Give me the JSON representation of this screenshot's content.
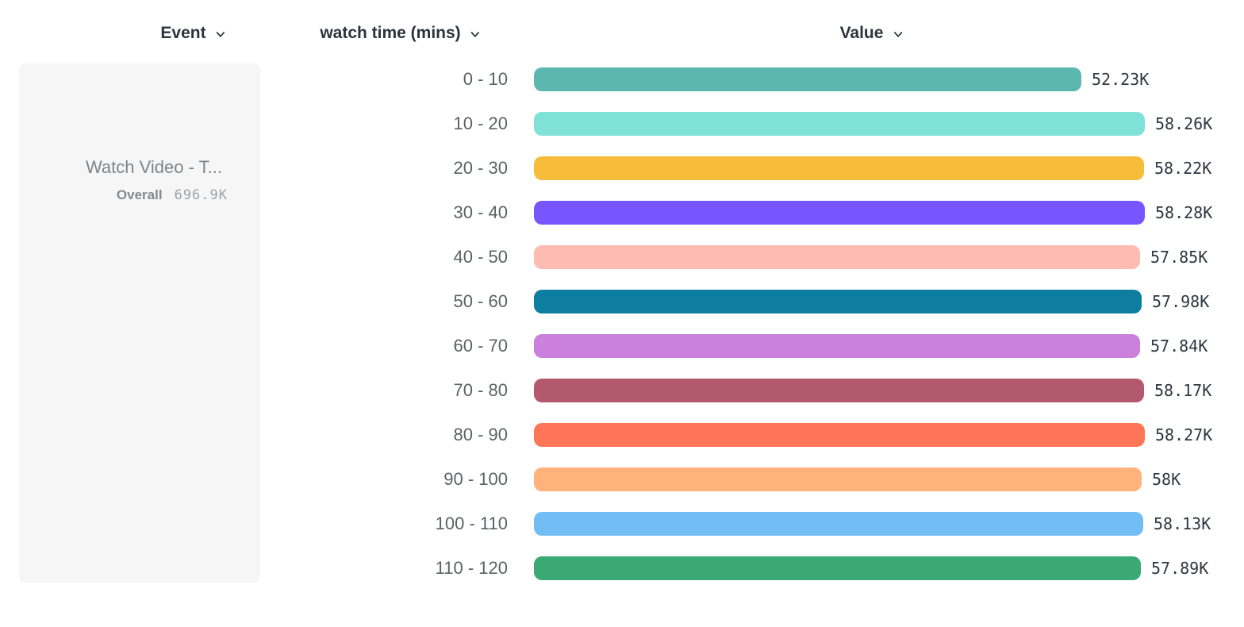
{
  "header": {
    "columns": [
      {
        "label": "Event"
      },
      {
        "label": "watch time (mins)"
      },
      {
        "label": "Value"
      }
    ]
  },
  "event_panel": {
    "title": "Watch Video - T...",
    "overall_label": "Overall",
    "overall_value": "696.9K"
  },
  "chart_data": {
    "type": "bar",
    "orientation": "horizontal",
    "title": "",
    "xlabel": "Value",
    "ylabel": "watch time (mins)",
    "xlim": [
      0,
      58280
    ],
    "grid": false,
    "legend": false,
    "categories": [
      "0 - 10",
      "10 - 20",
      "20 - 30",
      "30 - 40",
      "40 - 50",
      "50 - 60",
      "60 - 70",
      "70 - 80",
      "80 - 90",
      "90 - 100",
      "100 - 110",
      "110 - 120"
    ],
    "values": [
      52230,
      58260,
      58220,
      58280,
      57850,
      57980,
      57840,
      58170,
      58270,
      58000,
      58130,
      57890
    ],
    "value_labels": [
      "52.23K",
      "58.26K",
      "58.22K",
      "58.28K",
      "57.85K",
      "57.98K",
      "57.84K",
      "58.17K",
      "58.27K",
      "58K",
      "58.13K",
      "57.89K"
    ],
    "colors": [
      "#5BB7AF",
      "#80E1D9",
      "#F8BC3B",
      "#7856FF",
      "#FEBBB2",
      "#0D7EA0",
      "#CA80DC",
      "#B2596E",
      "#FF7557",
      "#FFB27A",
      "#72BEF4",
      "#3BA974"
    ]
  }
}
